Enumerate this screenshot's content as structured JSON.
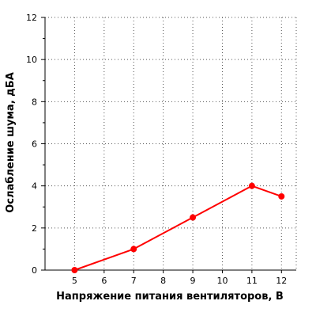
{
  "chart_data": {
    "type": "line",
    "title": "",
    "xlabel": "Напряжение питания вентиляторов, В",
    "ylabel": "Ослабление шума, дБА",
    "xlim": [
      4,
      12.5
    ],
    "ylim": [
      0,
      12
    ],
    "x_ticks": [
      5,
      6,
      7,
      8,
      9,
      10,
      11,
      12
    ],
    "y_ticks": [
      0,
      2,
      4,
      6,
      8,
      10,
      12
    ],
    "y_minor_ticks": [
      1,
      3,
      5,
      7,
      9,
      11
    ],
    "grid": true,
    "legend": "none",
    "series": [
      {
        "color": "#ff0000",
        "x": [
          5,
          7,
          9,
          11,
          12
        ],
        "y": [
          0,
          1,
          2.5,
          4,
          3.5
        ]
      }
    ]
  }
}
